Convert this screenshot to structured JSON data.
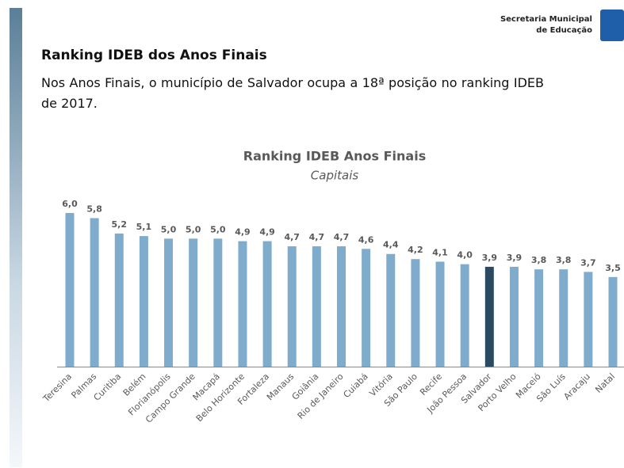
{
  "header": {
    "org_line1": "Secretaria Municipal",
    "org_line2": "de Educação"
  },
  "heading": "Ranking IDEB dos Anos Finais",
  "text": "Nos Anos Finais, o município de Salvador ocupa a 18ª posição no ranking IDEB de 2017.",
  "chart_data": {
    "type": "bar",
    "title": "Ranking IDEB Anos Finais",
    "subtitle": "Capitais",
    "categories": [
      "Teresina",
      "Palmas",
      "Curitiba",
      "Belém",
      "Florianópolis",
      "Campo Grande",
      "Macapá",
      "Belo Horizonte",
      "Fortaleza",
      "Manaus",
      "Goiânia",
      "Rio de Janeiro",
      "Cuiabá",
      "Vitória",
      "São Paulo",
      "Recife",
      "João Pessoa",
      "Salvador",
      "Porto Velho",
      "Maceió",
      "São Luís",
      "Aracaju",
      "Natal"
    ],
    "values": [
      6.0,
      5.8,
      5.2,
      5.1,
      5.0,
      5.0,
      5.0,
      4.9,
      4.9,
      4.7,
      4.7,
      4.7,
      4.6,
      4.4,
      4.2,
      4.1,
      4.0,
      3.9,
      3.9,
      3.8,
      3.8,
      3.7,
      3.5
    ],
    "value_labels": [
      "6,0",
      "5,8",
      "5,2",
      "5,1",
      "5,0",
      "5,0",
      "5,0",
      "4,9",
      "4,9",
      "4,7",
      "4,7",
      "4,7",
      "4,6",
      "4,4",
      "4,2",
      "4,1",
      "4,0",
      "3,9",
      "3,9",
      "3,8",
      "3,8",
      "3,7",
      "3,5"
    ],
    "colors": [
      "#7fabcc",
      "#7fabcc",
      "#7fabcc",
      "#7fabcc",
      "#7fabcc",
      "#7fabcc",
      "#7fabcc",
      "#7fabcc",
      "#7fabcc",
      "#7fabcc",
      "#7fabcc",
      "#7fabcc",
      "#7fabcc",
      "#7fabcc",
      "#7fabcc",
      "#7fabcc",
      "#7fabcc",
      "#2a4a62",
      "#7fabcc",
      "#7fabcc",
      "#7fabcc",
      "#7fabcc",
      "#7fabcc"
    ]
  }
}
